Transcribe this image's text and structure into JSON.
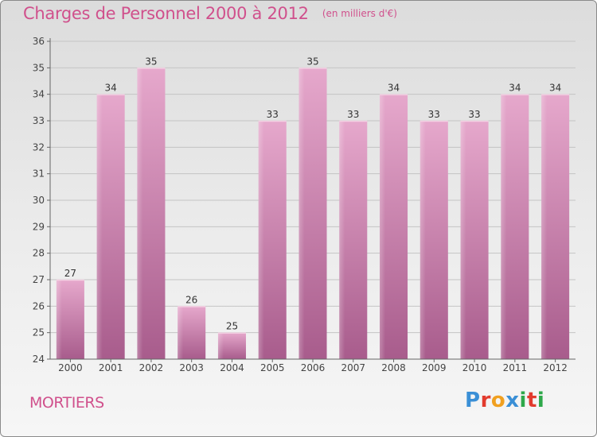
{
  "header": {
    "title": "Charges de Personnel 2000 à 2012",
    "unit": "(en milliers d'€)"
  },
  "footer": {
    "commune": "MORTIERS",
    "logo_letters": [
      "P",
      "r",
      "o",
      "x",
      "i",
      "t",
      "i"
    ],
    "logo_colors": [
      "#3a8fd6",
      "#e23b2e",
      "#f0a020",
      "#3a8fd6",
      "#2ea84a",
      "#e23b2e",
      "#2ea84a"
    ]
  },
  "colors": {
    "accent": "#d0508c",
    "bar_top": "#e6a8cc",
    "bar_bottom": "#a85c8c",
    "label": "#333333"
  },
  "chart_data": {
    "type": "bar",
    "categories": [
      "2000",
      "2001",
      "2002",
      "2003",
      "2004",
      "2005",
      "2006",
      "2007",
      "2008",
      "2009",
      "2010",
      "2011",
      "2012"
    ],
    "values": [
      27,
      34,
      35,
      26,
      25,
      33,
      35,
      33,
      34,
      33,
      33,
      34,
      34
    ],
    "ylim": [
      24,
      36
    ],
    "yticks": [
      24,
      25,
      26,
      27,
      28,
      29,
      30,
      31,
      32,
      33,
      34,
      35,
      36
    ],
    "grid": true,
    "legend": "none"
  }
}
